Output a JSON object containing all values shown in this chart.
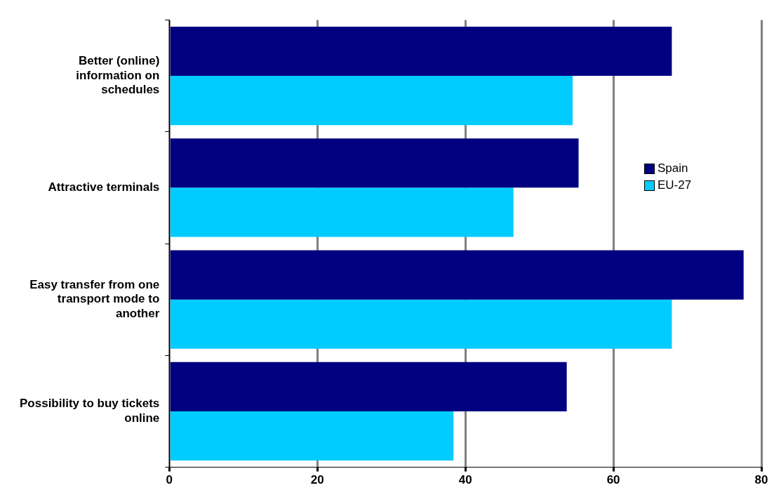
{
  "chart_data": {
    "type": "bar",
    "orientation": "horizontal",
    "categories": [
      "Better (online) information on schedules",
      "Attractive terminals",
      "Easy transfer from one transport mode to another",
      "Possibility to buy tickets online"
    ],
    "series": [
      {
        "name": "Spain",
        "color": "#000080",
        "values": [
          67.9,
          55.3,
          77.6,
          53.7
        ]
      },
      {
        "name": "EU-27",
        "color": "#00ccff",
        "values": [
          54.5,
          46.5,
          67.9,
          38.4
        ]
      }
    ],
    "xlim": [
      0,
      80
    ],
    "xticks": [
      0,
      20,
      40,
      60,
      80
    ],
    "grid": "x",
    "legend": "right"
  }
}
